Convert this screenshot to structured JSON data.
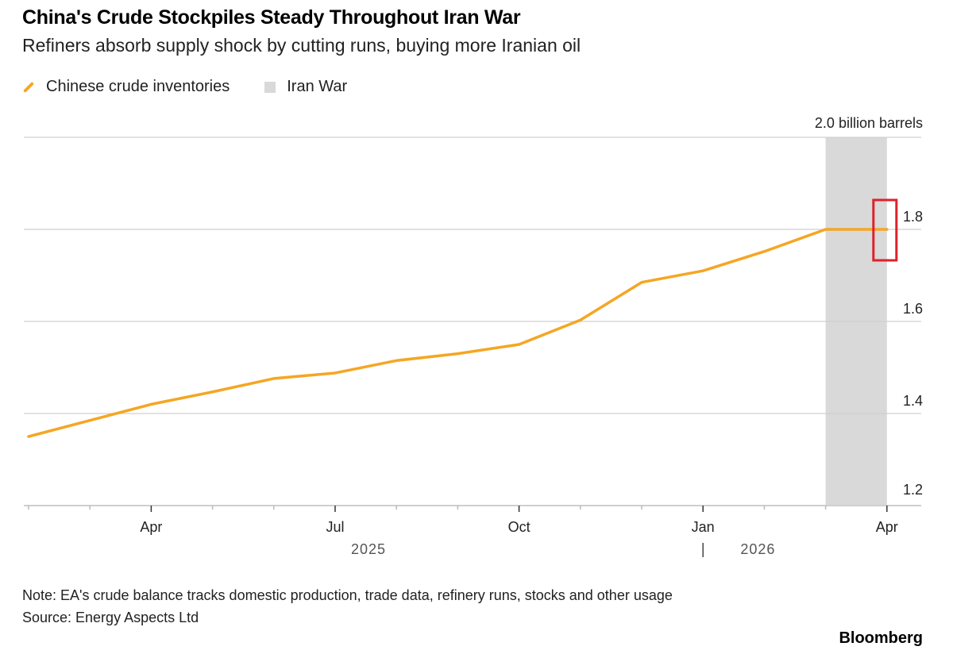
{
  "title": "China's Crude Stockpiles Steady Throughout Iran War",
  "subtitle": "Refiners absorb supply shock by cutting runs, buying more Iranian oil",
  "legend": [
    {
      "label": "Chinese crude inventories",
      "color": "#f5a623",
      "kind": "line"
    },
    {
      "label": "Iran War",
      "color": "#d9d9d9",
      "kind": "shaded-region"
    }
  ],
  "note": "Note: EA's crude balance tracks domestic production, trade data, refinery runs, stocks and other usage",
  "source": "Source: Energy Aspects Ltd",
  "brand": "Bloomberg",
  "chart_data": {
    "type": "line",
    "ylabel": "2.0 billion barrels",
    "ylim": [
      1.2,
      2.0
    ],
    "yticks": [
      "1.2",
      "1.4",
      "1.6",
      "1.8",
      "2.0 billion barrels"
    ],
    "grid": true,
    "y_axis_side": "right",
    "x": [
      "2025-02",
      "2025-03",
      "2025-04",
      "2025-05",
      "2025-06",
      "2025-07",
      "2025-08",
      "2025-09",
      "2025-10",
      "2025-11",
      "2025-12",
      "2026-01",
      "2026-02",
      "2026-03",
      "2026-04"
    ],
    "series": [
      {
        "name": "Chinese crude inventories",
        "color": "#f5a623",
        "values": [
          1.35,
          1.385,
          1.42,
          1.447,
          1.476,
          1.488,
          1.515,
          1.53,
          1.55,
          1.603,
          1.685,
          1.71,
          1.752,
          1.8,
          1.8
        ]
      }
    ],
    "xtick_labels": [
      {
        "month": "2025-04",
        "label": "Apr"
      },
      {
        "month": "2025-07",
        "label": "Jul"
      },
      {
        "month": "2025-10",
        "label": "Oct"
      },
      {
        "month": "2026-01",
        "label": "Jan"
      },
      {
        "month": "2026-04",
        "label": "Apr"
      }
    ],
    "year_labels": [
      {
        "month": "2025-07",
        "label": "2025"
      },
      {
        "month": "2026-02",
        "label": "2026"
      }
    ],
    "shaded_region": {
      "label": "Iran War",
      "from": "2026-03",
      "to": "2026-04",
      "color": "#d9d9d9"
    },
    "annotation": {
      "type": "highlight-box",
      "at": "2026-04",
      "color": "#e0202a"
    }
  }
}
